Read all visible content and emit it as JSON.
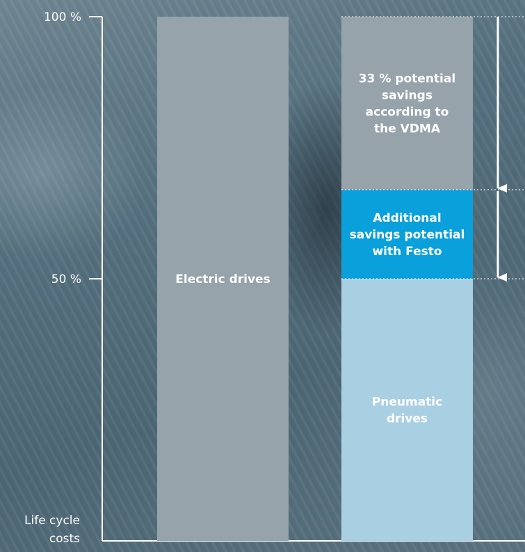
{
  "chart_data": {
    "type": "bar",
    "stacked": true,
    "ylabel": "Life cycle costs",
    "ylim": [
      0,
      100
    ],
    "yticks": [
      {
        "value": 100,
        "label": "100 %"
      },
      {
        "value": 50,
        "label": "50 %"
      }
    ],
    "bars": [
      {
        "id": "electric",
        "segments": [
          {
            "label": [
              "Electric drives"
            ],
            "from": 0,
            "to": 100,
            "color": "#97a3ab",
            "text_color": "#ffffff"
          }
        ]
      },
      {
        "id": "pneumatic",
        "segments": [
          {
            "label": [
              "Pneumatic",
              "drives"
            ],
            "from": 0,
            "to": 50,
            "color": "#a9cfe3",
            "text_color": "#ffffff"
          },
          {
            "label": [
              "Additional",
              "savings potential",
              "with Festo"
            ],
            "from": 50,
            "to": 67,
            "color": "#0aa0dc",
            "text_color": "#ffffff"
          },
          {
            "label": [
              "33 % potential",
              "savings",
              "according to",
              "the VDMA"
            ],
            "from": 67,
            "to": 100,
            "color": "#97a3ab",
            "text_color": "#ffffff"
          }
        ]
      }
    ],
    "arrows": [
      {
        "from": 100,
        "to": 67
      },
      {
        "from": 67,
        "to": 50
      }
    ],
    "axis_color": "#ffffff"
  }
}
